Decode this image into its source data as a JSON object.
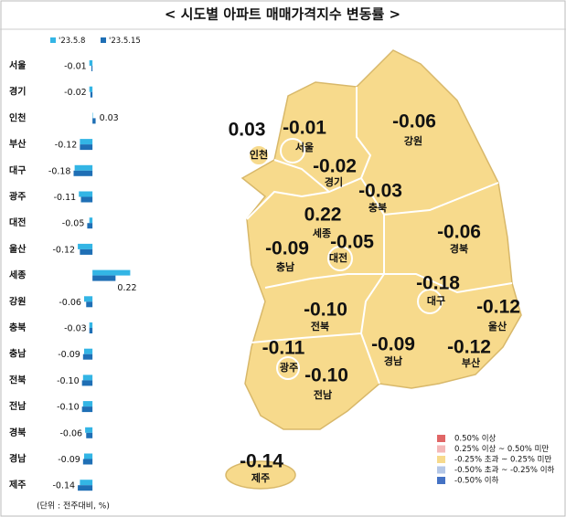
{
  "chart_data": {
    "type": "bar",
    "orientation": "horizontal",
    "title": "< 시도별 아파트 매매가격지수 변동률 >",
    "unit_note": "(단위 : 전주대비, %)",
    "categories": [
      "서울",
      "경기",
      "인천",
      "부산",
      "대구",
      "광주",
      "대전",
      "울산",
      "세종",
      "강원",
      "충북",
      "충남",
      "전북",
      "전남",
      "경북",
      "경남",
      "제주"
    ],
    "series": [
      {
        "name": "'23.5.8",
        "color": "#33b5e5",
        "values": [
          -0.03,
          -0.03,
          0.0,
          -0.12,
          -0.17,
          -0.13,
          -0.03,
          -0.14,
          0.36,
          -0.08,
          -0.03,
          -0.08,
          -0.09,
          -0.09,
          -0.07,
          -0.08,
          -0.12
        ]
      },
      {
        "name": "'23.5.15",
        "color": "#1f6fb5",
        "values": [
          -0.01,
          -0.02,
          0.03,
          -0.12,
          -0.18,
          -0.11,
          -0.05,
          -0.12,
          0.22,
          -0.06,
          -0.03,
          -0.09,
          -0.1,
          -0.1,
          -0.06,
          -0.09,
          -0.14
        ],
        "value_labels": [
          "-0.01",
          "-0.02",
          "0.03",
          "-0.12",
          "-0.18",
          "-0.11",
          "-0.05",
          "-0.12",
          "0.22",
          "-0.06",
          "-0.03",
          "-0.09",
          "-0.10",
          "-0.10",
          "-0.06",
          "-0.09",
          "-0.14"
        ]
      }
    ],
    "xlim": [
      -0.35,
      0.4
    ],
    "map_legend": [
      {
        "color": "#e06666",
        "label": "0.50% 이상"
      },
      {
        "color": "#f4b8b8",
        "label": "0.25% 이상 ~ 0.50% 미만"
      },
      {
        "color": "#f7da8c",
        "label": "-0.25% 초과 ~ 0.25% 미만"
      },
      {
        "color": "#b4c7e7",
        "label": "-0.50% 초과 ~ -0.25% 이하"
      },
      {
        "color": "#4472c4",
        "label": "-0.50% 이하"
      }
    ]
  }
}
